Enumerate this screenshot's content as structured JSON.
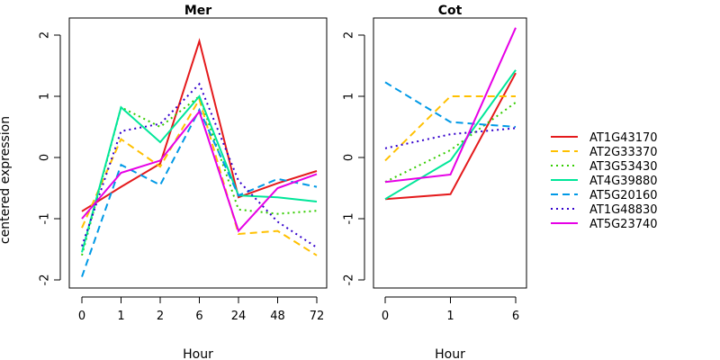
{
  "figure": {
    "ylabel": "centered expression",
    "xlabel": "Hour"
  },
  "chart_data": [
    {
      "type": "line",
      "title": "Mer",
      "xlabel": "Hour",
      "ylabel": "centered expression",
      "categories": [
        "0",
        "1",
        "2",
        "6",
        "24",
        "48",
        "72"
      ],
      "ylim": [
        -2.1,
        2.3
      ],
      "yticks": [
        -2,
        -1,
        0,
        1,
        2
      ],
      "grid": false,
      "series": [
        {
          "name": "AT1G43170",
          "values": [
            -0.88,
            -0.48,
            -0.1,
            1.9,
            -0.65,
            -0.42,
            -0.22
          ]
        },
        {
          "name": "AT2G33370",
          "values": [
            -1.15,
            0.3,
            -0.15,
            0.95,
            -1.25,
            -1.2,
            -1.6
          ]
        },
        {
          "name": "AT3G53430",
          "values": [
            -1.6,
            0.82,
            0.5,
            1.0,
            -0.85,
            -0.92,
            -0.87
          ]
        },
        {
          "name": "AT4G39880",
          "values": [
            -1.55,
            0.82,
            0.25,
            1.0,
            -0.62,
            -0.65,
            -0.72
          ]
        },
        {
          "name": "AT5G20160",
          "values": [
            -1.95,
            -0.12,
            -0.45,
            0.78,
            -0.62,
            -0.35,
            -0.48
          ]
        },
        {
          "name": "AT1G48830",
          "values": [
            -1.45,
            0.43,
            0.55,
            1.2,
            -0.38,
            -1.05,
            -1.47
          ]
        },
        {
          "name": "AT5G23740",
          "values": [
            -1.0,
            -0.25,
            -0.05,
            0.75,
            -1.2,
            -0.5,
            -0.27
          ]
        }
      ]
    },
    {
      "type": "line",
      "title": "Cot",
      "xlabel": "Hour",
      "ylabel": "",
      "categories": [
        "0",
        "1",
        "6"
      ],
      "ylim": [
        -2.1,
        2.3
      ],
      "yticks": [
        -2,
        -1,
        0,
        1,
        2
      ],
      "grid": false,
      "series": [
        {
          "name": "AT1G43170",
          "values": [
            -0.68,
            -0.6,
            1.38
          ]
        },
        {
          "name": "AT2G33370",
          "values": [
            -0.05,
            1.0,
            1.0
          ]
        },
        {
          "name": "AT3G53430",
          "values": [
            -0.4,
            0.12,
            0.9
          ]
        },
        {
          "name": "AT4G39880",
          "values": [
            -0.68,
            -0.05,
            1.43
          ]
        },
        {
          "name": "AT5G20160",
          "values": [
            1.23,
            0.58,
            0.5
          ]
        },
        {
          "name": "AT1G48830",
          "values": [
            0.15,
            0.38,
            0.48
          ]
        },
        {
          "name": "AT5G23740",
          "values": [
            -0.4,
            -0.28,
            2.12
          ]
        }
      ]
    }
  ],
  "legend": {
    "position": "right",
    "items": [
      {
        "name": "AT1G43170",
        "color": "#E41A1C",
        "dash": "solid"
      },
      {
        "name": "AT2G33370",
        "color": "#FFC000",
        "dash": "dashed"
      },
      {
        "name": "AT3G53430",
        "color": "#33CC00",
        "dash": "dotted"
      },
      {
        "name": "AT4G39880",
        "color": "#00E699",
        "dash": "solid"
      },
      {
        "name": "AT5G20160",
        "color": "#0099E6",
        "dash": "dashed"
      },
      {
        "name": "AT1G48830",
        "color": "#3300CC",
        "dash": "dotted"
      },
      {
        "name": "AT5G23740",
        "color": "#E600E6",
        "dash": "solid"
      }
    ]
  }
}
